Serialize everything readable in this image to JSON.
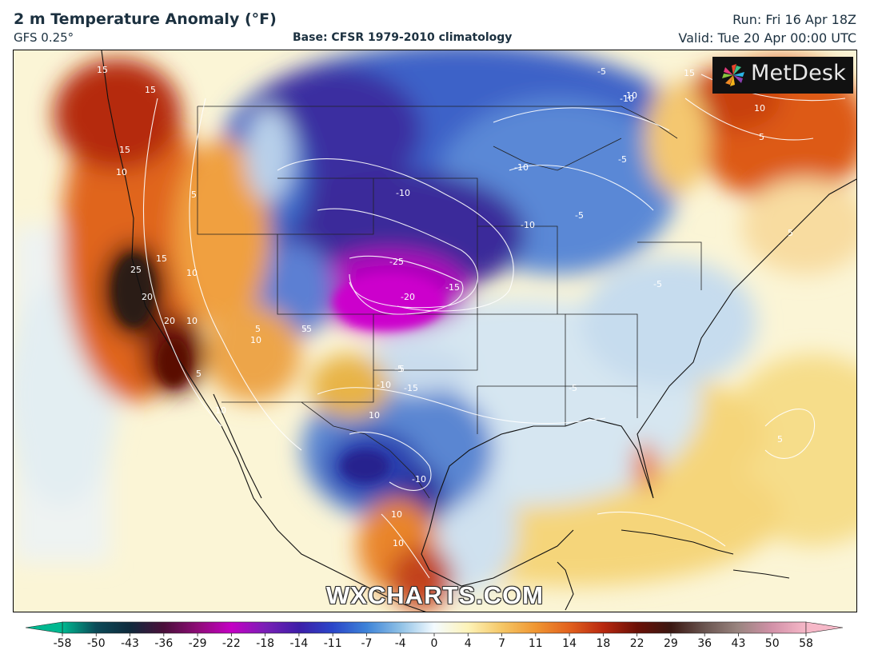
{
  "header": {
    "title": "2 m Temperature Anomaly (°F)",
    "model": "GFS 0.25°",
    "base": "Base: CFSR 1979-2010 climatology",
    "run": "Run: Fri 16 Apr 18Z",
    "valid": "Valid: Tue 20 Apr 00:00 UTC"
  },
  "logo": {
    "text": "MetDesk",
    "icon": "pinwheel-icon"
  },
  "watermark": "WXCHARTS.COM",
  "colorbar": {
    "ticks": [
      "-58",
      "-50",
      "-43",
      "-36",
      "-29",
      "-22",
      "-18",
      "-14",
      "-11",
      "-7",
      "-4",
      "0",
      "4",
      "7",
      "11",
      "14",
      "18",
      "22",
      "29",
      "36",
      "43",
      "50",
      "58"
    ],
    "colors": [
      "#00b890",
      "#0b4a58",
      "#0f2a3c",
      "#4a0f3a",
      "#8e0c77",
      "#c400c4",
      "#7a1fb6",
      "#3d1ea8",
      "#2a46c9",
      "#3d83d8",
      "#8fc1e6",
      "#f4fbff",
      "#fdf3b8",
      "#f5c766",
      "#f09632",
      "#e2611e",
      "#b8280f",
      "#6b1006",
      "#3b1812",
      "#6a5550",
      "#9a8580",
      "#d291a8",
      "#f6b8c8"
    ]
  },
  "map": {
    "region": "North America",
    "contour_labels": [
      "15",
      "15",
      "15",
      "10",
      "5",
      "25",
      "20",
      "20",
      "10",
      "15",
      "10",
      "10",
      "5",
      "10",
      "5",
      "-10",
      "-25",
      "-20",
      "-15",
      "-10",
      "-10",
      "-10",
      "-5",
      "-10",
      "-5",
      "-5",
      "15",
      "10",
      "5",
      "-5",
      "-5",
      "5",
      "-5",
      "5",
      "-10",
      "-15",
      "10",
      "-5",
      "-5",
      "10",
      "10",
      "-10",
      "5"
    ]
  }
}
